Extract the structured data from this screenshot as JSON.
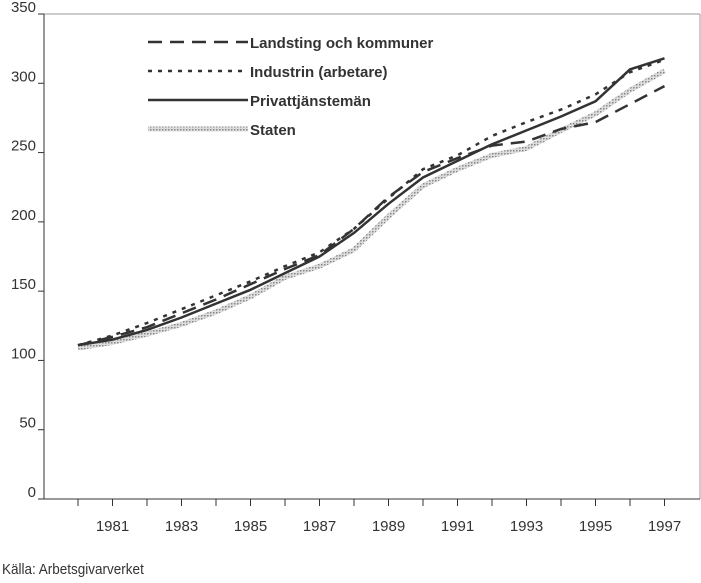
{
  "chart_data": {
    "type": "line",
    "title": "",
    "xlabel": "",
    "ylabel": "",
    "x": [
      1980,
      1981,
      1982,
      1983,
      1984,
      1985,
      1986,
      1987,
      1988,
      1989,
      1990,
      1991,
      1992,
      1993,
      1994,
      1995,
      1996,
      1997
    ],
    "xticks": [
      "1981",
      "1983",
      "1985",
      "1987",
      "1989",
      "1991",
      "1993",
      "1995",
      "1997"
    ],
    "yticks": [
      "0",
      "50",
      "100",
      "150",
      "200",
      "250",
      "300",
      "350"
    ],
    "ylim": [
      0,
      350
    ],
    "xlim": [
      1979,
      1997.9
    ],
    "legend_position": "top-left",
    "series": [
      {
        "name": "Landsting och kommuner",
        "style": "dashed",
        "color": "#333333",
        "values": [
          111,
          117,
          124,
          134,
          144,
          155,
          166,
          176,
          195,
          218,
          236,
          246,
          255,
          258,
          267,
          272,
          285,
          298
        ]
      },
      {
        "name": "Industrin (arbetare)",
        "style": "dotted",
        "color": "#333333",
        "values": [
          111,
          118,
          127,
          137,
          147,
          157,
          168,
          178,
          195,
          217,
          238,
          248,
          262,
          272,
          281,
          292,
          308,
          317
        ]
      },
      {
        "name": "Privattjänstemän",
        "style": "solid",
        "color": "#333333",
        "values": [
          111,
          115,
          122,
          131,
          141,
          151,
          163,
          175,
          192,
          213,
          232,
          244,
          256,
          266,
          276,
          287,
          310,
          318
        ]
      },
      {
        "name": "Staten",
        "style": "hatched",
        "color": "#aaaaaa",
        "values": [
          109,
          113,
          119,
          126,
          135,
          146,
          160,
          168,
          180,
          204,
          226,
          238,
          248,
          253,
          266,
          278,
          295,
          309
        ]
      }
    ]
  },
  "source": "Källa: Arbetsgivarverket"
}
